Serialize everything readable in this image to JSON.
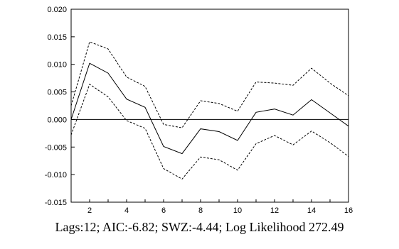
{
  "chart_data": {
    "type": "line",
    "x": [
      1,
      2,
      3,
      4,
      5,
      6,
      7,
      8,
      9,
      10,
      11,
      12,
      13,
      14,
      15,
      16
    ],
    "xlim": [
      1,
      16
    ],
    "xticks": [
      "2",
      "4",
      "6",
      "8",
      "10",
      "12",
      "14",
      "16"
    ],
    "xtick_values": [
      2,
      4,
      6,
      8,
      10,
      12,
      14,
      16
    ],
    "ylim": [
      -0.015,
      0.02
    ],
    "yticks": [
      "0.020",
      "0.015",
      "0.010",
      "0.005",
      "0.000",
      "-0.005",
      "-0.010",
      "-0.015"
    ],
    "ytick_values": [
      0.02,
      0.015,
      0.01,
      0.005,
      0.0,
      -0.005,
      -0.01,
      -0.015
    ],
    "zero_line": 0,
    "grid": false,
    "series": [
      {
        "style": "solid",
        "color": "#000000",
        "values": [
          0.0,
          0.0102,
          0.0084,
          0.0037,
          0.0022,
          -0.0049,
          -0.0062,
          -0.0017,
          -0.0022,
          -0.0038,
          0.0013,
          0.0019,
          0.0008,
          0.0036,
          0.0012,
          -0.0012
        ]
      },
      {
        "style": "dashed",
        "color": "#000000",
        "values": [
          0.0025,
          0.0141,
          0.0128,
          0.0077,
          0.006,
          -0.0009,
          -0.0015,
          0.0034,
          0.0029,
          0.0015,
          0.0068,
          0.0066,
          0.0062,
          0.0093,
          0.0066,
          0.0043
        ]
      },
      {
        "style": "dashed",
        "color": "#000000",
        "values": [
          -0.0028,
          0.0064,
          0.0041,
          -0.0002,
          -0.0016,
          -0.0089,
          -0.0108,
          -0.0068,
          -0.0073,
          -0.0092,
          -0.0044,
          -0.0029,
          -0.0046,
          -0.0021,
          -0.0042,
          -0.0067
        ]
      }
    ]
  },
  "caption": "Lags:12; AIC:-6.82; SWZ:-4.44; Log Likelihood 272.49"
}
